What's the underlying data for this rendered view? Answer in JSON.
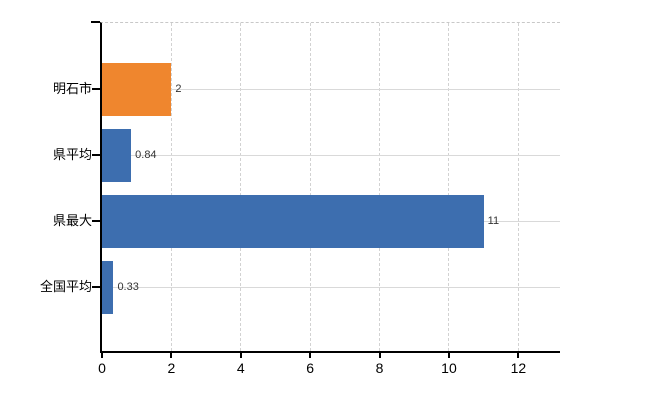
{
  "chart_data": {
    "type": "bar",
    "orientation": "horizontal",
    "title": "",
    "categories": [
      "明石市",
      "県平均",
      "県最大",
      "全国平均"
    ],
    "values": [
      2,
      0.84,
      11,
      0.33
    ],
    "data_labels": [
      "2",
      "0.84",
      "11",
      "0.33"
    ],
    "bar_colors": [
      "#EF862E",
      "#3D6EAF",
      "#3D6EAF",
      "#3D6EAF"
    ],
    "x_ticks": [
      0,
      2,
      4,
      6,
      8,
      10,
      12
    ],
    "x_tick_labels": [
      "0",
      "2",
      "4",
      "6",
      "8",
      "10",
      "12"
    ],
    "xlim": [
      0,
      13.2
    ],
    "xlabel": "",
    "ylabel": "",
    "grid": true,
    "legend": false,
    "colors": {
      "accent_orange": "#EF862E",
      "accent_blue": "#3D6EAF",
      "gridline": "#d9d9d9",
      "axis": "#000000",
      "background": "#ffffff"
    }
  }
}
